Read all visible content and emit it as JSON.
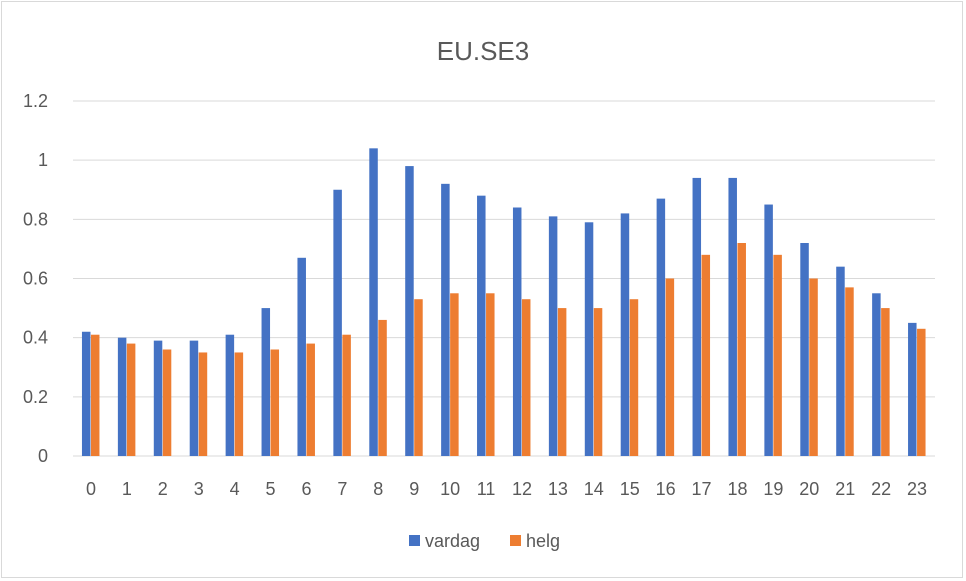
{
  "chart_data": {
    "type": "bar",
    "title": "EU.SE3",
    "xlabel": "",
    "ylabel": "",
    "ylim": [
      0,
      1.2
    ],
    "yticks": [
      "0",
      "0.2",
      "0.4",
      "0.6",
      "0.8",
      "1",
      "1.2"
    ],
    "ytick_values": [
      0,
      0.2,
      0.4,
      0.6,
      0.8,
      1.0,
      1.2
    ],
    "grid": true,
    "legend_position": "bottom",
    "categories": [
      "0",
      "1",
      "2",
      "3",
      "4",
      "5",
      "6",
      "7",
      "8",
      "9",
      "10",
      "11",
      "12",
      "13",
      "14",
      "15",
      "16",
      "17",
      "18",
      "19",
      "20",
      "21",
      "22",
      "23"
    ],
    "series": [
      {
        "name": "vardag",
        "color": "#4472C4",
        "values": [
          0.42,
          0.4,
          0.39,
          0.39,
          0.41,
          0.5,
          0.67,
          0.9,
          1.04,
          0.98,
          0.92,
          0.88,
          0.84,
          0.81,
          0.79,
          0.82,
          0.87,
          0.94,
          0.94,
          0.85,
          0.72,
          0.64,
          0.55,
          0.45
        ]
      },
      {
        "name": "helg",
        "color": "#ED7D31",
        "values": [
          0.41,
          0.38,
          0.36,
          0.35,
          0.35,
          0.36,
          0.38,
          0.41,
          0.46,
          0.53,
          0.55,
          0.55,
          0.53,
          0.5,
          0.5,
          0.53,
          0.6,
          0.68,
          0.72,
          0.68,
          0.6,
          0.57,
          0.5,
          0.43
        ]
      }
    ]
  }
}
